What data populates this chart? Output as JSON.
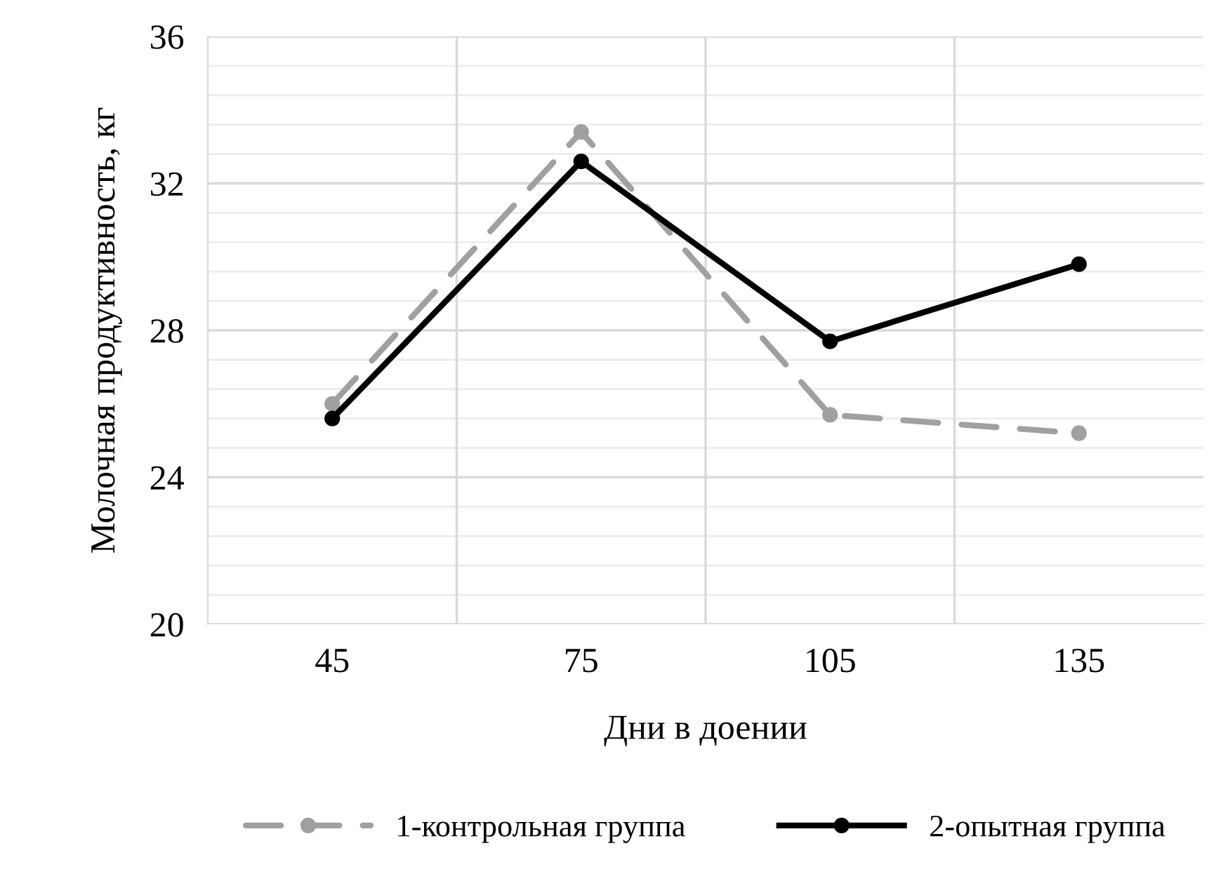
{
  "chart_data": {
    "type": "line",
    "xlabel": "Дни в доении",
    "ylabel": "Молочная продуктивность, кг",
    "categories": [
      "45",
      "75",
      "105",
      "135"
    ],
    "series": [
      {
        "name": "1-контрольная группа",
        "color": "#a0a0a0",
        "line_style": "dashed",
        "marker": "circle",
        "values": [
          26.0,
          33.4,
          25.7,
          25.2
        ]
      },
      {
        "name": "2-опытная группа",
        "color": "#000000",
        "line_style": "solid",
        "marker": "circle",
        "values": [
          25.6,
          32.6,
          27.7,
          29.8
        ]
      }
    ],
    "ylim": [
      20,
      36
    ],
    "yticks": [
      20,
      24,
      28,
      32,
      36
    ],
    "grid": true,
    "legend": "bottom"
  }
}
